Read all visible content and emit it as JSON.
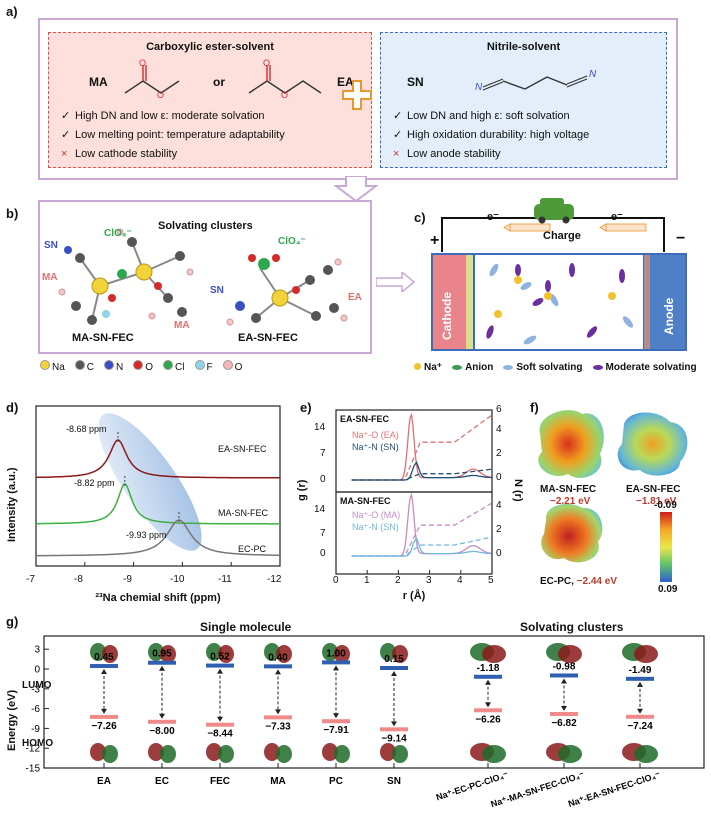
{
  "panel_a": {
    "label": "a)",
    "ester": {
      "title": "Carboxylic ester-solvent",
      "ma": "MA",
      "or": "or",
      "ea": "EA",
      "items": [
        {
          "mark": "✓",
          "text": "High DN and low ε: moderate solvation"
        },
        {
          "mark": "✓",
          "text": "Low melting point:  temperature adaptability"
        },
        {
          "mark": "×",
          "text": "Low cathode stability"
        }
      ]
    },
    "nitrile": {
      "title": "Nitrile-solvent",
      "sn": "SN",
      "n_left": "N",
      "n_right": "N",
      "items": [
        {
          "mark": "✓",
          "text": "Low DN and high ε: soft solvation"
        },
        {
          "mark": "✓",
          "text": "High oxidation durability: high voltage"
        },
        {
          "mark": "×",
          "text": "Low anode stability"
        }
      ]
    }
  },
  "panel_b": {
    "label": "b)",
    "title": "Solvating clusters",
    "clusters": [
      {
        "name": "MA-SN-FEC",
        "labels": {
          "sn": "SN",
          "clo4": "ClO₄⁻",
          "ma1": "MA",
          "ma2": "MA"
        }
      },
      {
        "name": "EA-SN-FEC",
        "labels": {
          "sn": "SN",
          "clo4": "ClO₄⁻",
          "ea": "EA"
        }
      }
    ],
    "legend": [
      "Na",
      "C",
      "N",
      "O",
      "Cl",
      "F",
      "O"
    ],
    "legend_colors": [
      "#f2d33a",
      "#555555",
      "#3b4fc4",
      "#d62a2a",
      "#2ea84f",
      "#8fd3e8",
      "#f4b6b6"
    ]
  },
  "panel_c": {
    "label": "c)",
    "charge": "Charge",
    "e_left": "e⁻",
    "e_right": "e⁻",
    "plus": "+",
    "minus": "−",
    "cathode": "Cathode",
    "anode": "Anode",
    "legend": [
      {
        "name": "Na⁺",
        "color": "#f2c12e"
      },
      {
        "name": "Anion",
        "color": "#3f9a5a"
      },
      {
        "name": "Soft solvating",
        "color": "#8fb3e0"
      },
      {
        "name": "Moderate solvating",
        "color": "#6b2fa0"
      }
    ]
  },
  "chart_data": [
    {
      "type": "line",
      "panel": "d)",
      "xlabel": "²³Na chemial shift (ppm)",
      "ylabel": "Intensity (a.u.)",
      "xlim": [
        -7,
        -12
      ],
      "x_ticks": [
        "-7",
        "-8",
        "-9",
        "-10",
        "-11",
        "-12"
      ],
      "series": [
        {
          "name": "EA-SN-FEC",
          "color": "#8b1a1a",
          "peak_x": -8.68,
          "annotation": "-8.68 ppm"
        },
        {
          "name": "MA-SN-FEC",
          "color": "#3cb043",
          "peak_x": -8.82,
          "annotation": "-8.82 ppm"
        },
        {
          "name": "EC-PC",
          "color": "#777777",
          "peak_x": -9.93,
          "annotation": "-9.93 ppm"
        }
      ]
    },
    {
      "type": "line",
      "panel": "e)",
      "xlabel": "r (Å)",
      "ylabel": "g (r)",
      "y2label": "N (r)",
      "xlim": [
        0,
        5
      ],
      "x_ticks": [
        "0",
        "1",
        "2",
        "3",
        "4",
        "5"
      ],
      "top": {
        "title": "EA-SN-FEC",
        "y_ticks": [
          "14",
          "7",
          "0"
        ],
        "y2_ticks": [
          "6",
          "4",
          "2",
          "0"
        ],
        "series": [
          {
            "name": "Na⁺-O (EA)",
            "color": "#e07070",
            "peak_r": 2.4,
            "peak_g": 16
          },
          {
            "name": "Na⁺-N (SN)",
            "color": "#1f4e79",
            "peak_r": 2.55,
            "peak_g": 4
          }
        ]
      },
      "bottom": {
        "title": "MA-SN-FEC",
        "y_ticks": [
          "14",
          "7",
          "0"
        ],
        "y2_ticks": [
          "4",
          "2",
          "0"
        ],
        "series": [
          {
            "name": "Na⁺-O (MA)",
            "color": "#c58cc5",
            "peak_r": 2.4,
            "peak_g": 15
          },
          {
            "name": "Na⁺-N (SN)",
            "color": "#6fb8dd",
            "peak_r": 2.55,
            "peak_g": 4
          }
        ]
      }
    },
    {
      "type": "bar",
      "panel": "g)",
      "ylabel": "Energy (eV)",
      "y_ticks": [
        "3",
        "0",
        "-3",
        "-6",
        "-9",
        "-12",
        "-15"
      ],
      "ylim": [
        -15,
        5
      ],
      "single_title": "Single molecule",
      "cluster_title": "Solvating clusters",
      "lumo_label": "LUMO",
      "homo_label": "HOMO",
      "categories": [
        "EA",
        "EC",
        "FEC",
        "MA",
        "PC",
        "SN",
        "Na⁺-EC-PC-ClO₄⁻",
        "Na⁺-MA-SN-FEC-ClO₄⁻",
        "Na⁺-EA-SN-FEC-ClO₄⁻"
      ],
      "lumo": [
        0.45,
        0.95,
        0.52,
        0.4,
        1.0,
        0.15,
        -1.18,
        -0.98,
        -1.49
      ],
      "homo": [
        -7.26,
        -8.0,
        -8.44,
        -7.33,
        -7.91,
        -9.14,
        -6.26,
        -6.82,
        -7.24
      ],
      "lumo_text": [
        "0.45",
        "0.95",
        "0.52",
        "0.40",
        "1.00",
        "0.15",
        "-1.18",
        "-0.98",
        "-1.49"
      ],
      "homo_text": [
        "−7.26",
        "−8.00",
        "−8.44",
        "−7.33",
        "−7.91",
        "−9.14",
        "−6.26",
        "−6.82",
        "−7.24"
      ]
    }
  ],
  "panel_f": {
    "label": "f)",
    "items": [
      {
        "name": "MA-SN-FEC",
        "energy": "−2.21 eV"
      },
      {
        "name": "EA-SN-FEC",
        "energy": "−1.81 eV"
      },
      {
        "name": "EC-PC, ",
        "energy": "−2.44 eV"
      }
    ],
    "scale_top": "-0.09",
    "scale_bottom": "0.09"
  }
}
